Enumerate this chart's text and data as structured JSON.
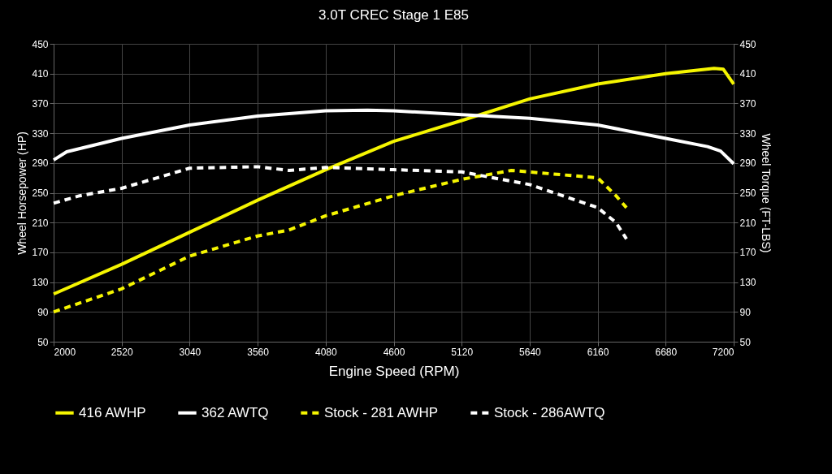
{
  "chart_data": {
    "type": "line",
    "title": "3.0T CREC Stage 1 E85",
    "xlabel": "Engine Speed (RPM)",
    "ylabel": "Wheel Horsepower (HP)",
    "y2label": "Wheel Torque (FT-LBS)",
    "xlim": [
      2000,
      7200
    ],
    "xticks": [
      2000,
      2520,
      3040,
      3560,
      4080,
      4600,
      5120,
      5640,
      6160,
      6680,
      7200
    ],
    "ylim": [
      50,
      450
    ],
    "yticks": [
      50,
      90,
      130,
      170,
      210,
      250,
      290,
      330,
      370,
      410,
      450
    ],
    "y2lim": [
      50,
      450
    ],
    "y2ticks": [
      50,
      90,
      130,
      170,
      210,
      250,
      290,
      330,
      370,
      410,
      450
    ],
    "grid": true,
    "legend": "bottom",
    "marker": "none",
    "series": [
      {
        "name": "416 AWHP",
        "color": "#f5f500",
        "line_style": "solid",
        "x": [
          2000,
          2520,
          3040,
          3560,
          4080,
          4600,
          5120,
          5640,
          6160,
          6680,
          7050,
          7120,
          7200
        ],
        "values": [
          114,
          154,
          197,
          240,
          281,
          319,
          347,
          376,
          396,
          410,
          417,
          416,
          396
        ]
      },
      {
        "name": "362 AWTQ",
        "color": "#ffffff",
        "line_style": "solid",
        "x": [
          2000,
          2100,
          2520,
          3040,
          3560,
          4080,
          4400,
          4600,
          5120,
          5640,
          6160,
          6680,
          7000,
          7100,
          7200
        ],
        "values": [
          294,
          305,
          323,
          341,
          353,
          360,
          361,
          360,
          355,
          350,
          341,
          323,
          312,
          306,
          289
        ]
      },
      {
        "name": "Stock - 281 AWHP",
        "color": "#f5f500",
        "line_style": "dashed",
        "x": [
          2000,
          2520,
          3040,
          3560,
          3800,
          4080,
          4600,
          5120,
          5500,
          5640,
          6160,
          6300,
          6380
        ],
        "values": [
          90,
          121,
          165,
          192,
          200,
          219,
          246,
          268,
          280,
          278,
          270,
          246,
          230
        ]
      },
      {
        "name": "Stock - 286AWTQ",
        "color": "#ffffff",
        "line_style": "dashed",
        "x": [
          2000,
          2200,
          2520,
          3040,
          3560,
          3800,
          4080,
          4600,
          5120,
          5640,
          6160,
          6300,
          6380
        ],
        "values": [
          236,
          246,
          256,
          283,
          285,
          280,
          284,
          281,
          278,
          261,
          230,
          210,
          188
        ]
      }
    ]
  }
}
